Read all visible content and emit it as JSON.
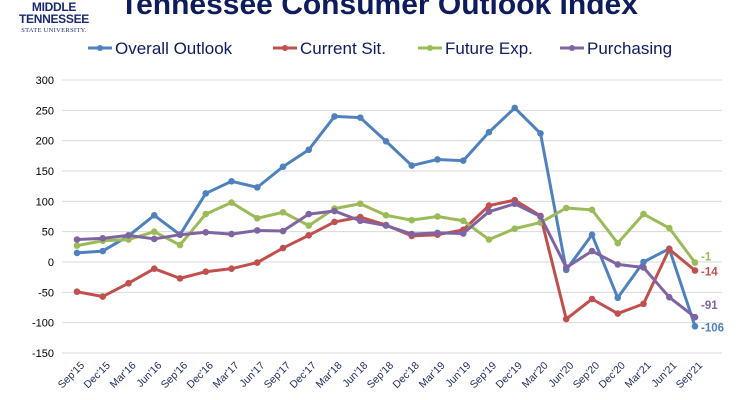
{
  "logo": {
    "line1": "MIDDLE",
    "line2": "TENNESSEE",
    "line3": "STATE UNIVERSITY."
  },
  "chart_data": {
    "type": "line",
    "title": "Tennessee Consumer Outlook  Index",
    "xlabel": "",
    "ylabel": "",
    "ylim": [
      -150,
      300
    ],
    "yticks": [
      -150,
      -100,
      -50,
      0,
      50,
      100,
      150,
      200,
      250,
      300
    ],
    "grid": true,
    "legend": "top",
    "categories": [
      "Sep'15",
      "Dec'15",
      "Mar'16",
      "Jun'16",
      "Sep'16",
      "Dec'16",
      "Mar'17",
      "Jun'17",
      "Sep'17",
      "Dec'17",
      "Mar'18",
      "Jun'18",
      "Sep'18",
      "Dec'18",
      "Mar'19",
      "Jun'19",
      "Sep'19",
      "Dec'19",
      "Mar'20",
      "Jun'20",
      "Sep'20",
      "Dec'20",
      "Mar'21",
      "Jun'21",
      "Sep'21"
    ],
    "series": [
      {
        "name": "Overall Outlook",
        "color": "#4f81bd",
        "end_label": "-106",
        "values": [
          15,
          18,
          43,
          77,
          45,
          113,
          133,
          123,
          157,
          185,
          240,
          238,
          199,
          159,
          169,
          167,
          214,
          254,
          212,
          -13,
          45,
          -59,
          0,
          22,
          -106
        ]
      },
      {
        "name": "Current Sit.",
        "color": "#c0504d",
        "end_label": "-14",
        "values": [
          -49,
          -57,
          -35,
          -11,
          -27,
          -16,
          -11,
          -1,
          23,
          44,
          66,
          74,
          61,
          43,
          45,
          53,
          93,
          102,
          76,
          -94,
          -61,
          -85,
          -69,
          21,
          -14
        ]
      },
      {
        "name": "Future Exp.",
        "color": "#9bbb59",
        "end_label": "-1",
        "values": [
          27,
          35,
          37,
          50,
          28,
          79,
          98,
          72,
          82,
          60,
          88,
          96,
          77,
          69,
          75,
          68,
          37,
          55,
          65,
          89,
          86,
          31,
          79,
          56,
          -1
        ]
      },
      {
        "name": "Purchasing",
        "color": "#8064a2",
        "end_label": "-91",
        "values": [
          37,
          39,
          44,
          38,
          45,
          49,
          46,
          52,
          51,
          79,
          84,
          68,
          60,
          46,
          48,
          47,
          83,
          96,
          75,
          -9,
          18,
          -4,
          -9,
          -58,
          -91
        ]
      }
    ]
  }
}
